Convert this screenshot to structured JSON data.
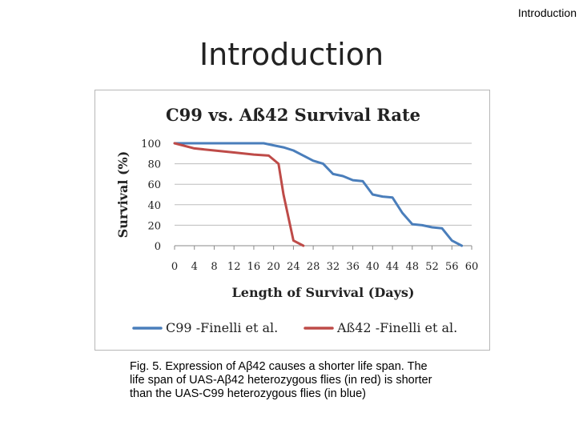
{
  "header": {
    "corner_label": "Introduction",
    "title": "Introduction"
  },
  "caption": {
    "line1": "Fig. 5. Expression of Aβ42 causes a shorter life span.  The",
    "line2": "life span of UAS-Aβ42 heterozygous flies (in red) is shorter",
    "line3": "than the UAS-C99 heterozygous flies (in blue)"
  },
  "chart_data": {
    "type": "line",
    "title": "C99 vs. Aß42 Survival Rate",
    "xlabel": "Length of Survival (Days)",
    "ylabel": "Survival (%)",
    "xlim": [
      0,
      60
    ],
    "ylim": [
      0,
      100
    ],
    "x_ticks": [
      "0",
      "4",
      "8",
      "12",
      "16",
      "20",
      "24",
      "28",
      "32",
      "36",
      "40",
      "44",
      "48",
      "52",
      "56",
      "60"
    ],
    "y_ticks": [
      "0",
      "20",
      "40",
      "60",
      "80",
      "100"
    ],
    "grid": true,
    "legend_position": "bottom",
    "series": [
      {
        "name": "C99 -Finelli et al.",
        "color": "#4a7ebb",
        "x": [
          0,
          2,
          4,
          6,
          8,
          10,
          12,
          14,
          16,
          18,
          20,
          22,
          24,
          26,
          28,
          30,
          32,
          34,
          36,
          38,
          40,
          42,
          44,
          46,
          48,
          50,
          52,
          54,
          56,
          58
        ],
        "y": [
          100,
          100,
          100,
          100,
          100,
          100,
          100,
          100,
          100,
          100,
          98,
          96,
          93,
          88,
          83,
          80,
          70,
          68,
          64,
          63,
          50,
          48,
          47,
          32,
          21,
          20,
          18,
          17,
          5,
          0
        ]
      },
      {
        "name": "Aß42 -Finelli et al.",
        "color": "#be4b48",
        "x": [
          0,
          4,
          8,
          12,
          16,
          19,
          21,
          22,
          24,
          26
        ],
        "y": [
          100,
          95,
          93,
          91,
          89,
          88,
          80,
          50,
          5,
          0
        ]
      }
    ]
  }
}
